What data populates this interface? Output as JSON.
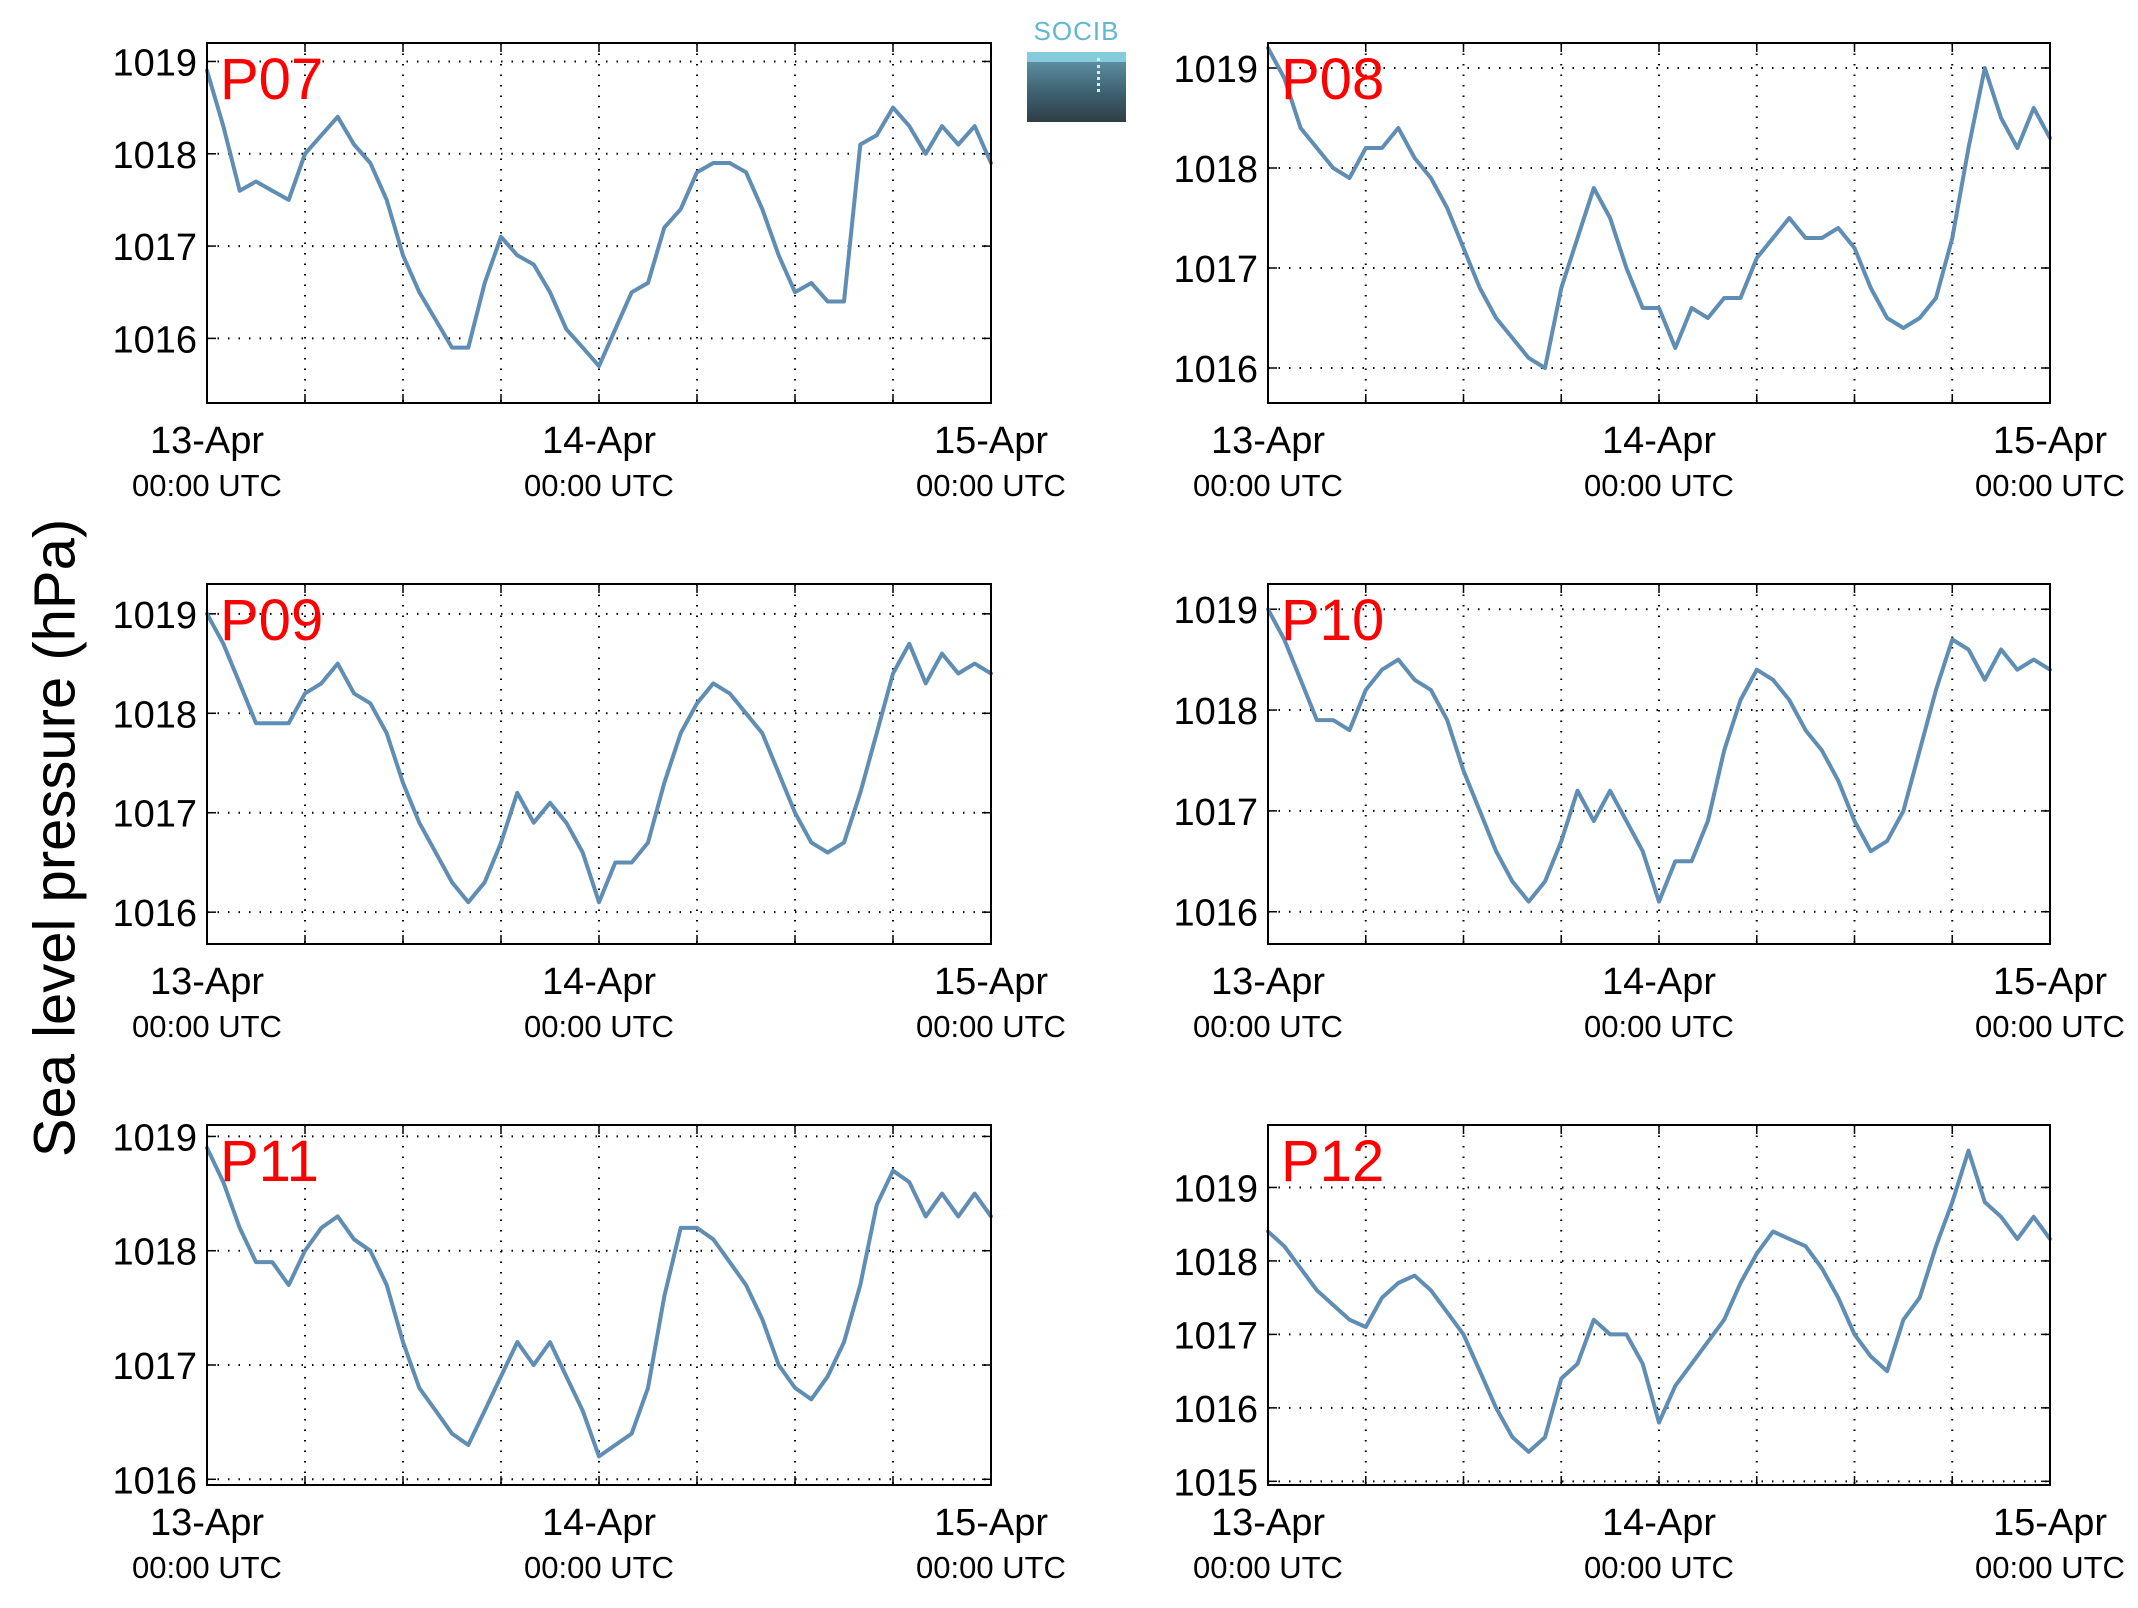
{
  "colors": {
    "line": "#5f8db3",
    "station_label": "#ff0000",
    "axis": "#000000",
    "grid": "#000000"
  },
  "figure": {
    "ylabel": "Sea level pressure (hPa)",
    "logo_text": "SOCIB",
    "time_axis": {
      "ticks": [
        {
          "hour": 0,
          "date": "13-Apr",
          "time": "00:00 UTC"
        },
        {
          "hour": 24,
          "date": "14-Apr",
          "time": "00:00 UTC"
        },
        {
          "hour": 48,
          "date": "15-Apr",
          "time": "00:00 UTC"
        }
      ]
    }
  },
  "chart_data": [
    {
      "type": "line",
      "name": "P07",
      "xunits": "hours since 13-Apr 00:00 UTC",
      "xlim": [
        0,
        48
      ],
      "ylim": [
        1015.3,
        1019.2
      ],
      "yticks": [
        1016,
        1017,
        1018,
        1019
      ],
      "grid": true,
      "x": [
        0,
        1,
        2,
        3,
        4,
        5,
        6,
        7,
        8,
        9,
        10,
        11,
        12,
        13,
        14,
        15,
        16,
        17,
        18,
        19,
        20,
        21,
        22,
        23,
        24,
        25,
        26,
        27,
        28,
        29,
        30,
        31,
        32,
        33,
        34,
        35,
        36,
        37,
        38,
        39,
        40,
        41,
        42,
        43,
        44,
        45,
        46,
        47,
        48
      ],
      "values": [
        1018.9,
        1018.3,
        1017.6,
        1017.7,
        1017.6,
        1017.5,
        1018.0,
        1018.2,
        1018.4,
        1018.1,
        1017.9,
        1017.5,
        1016.9,
        1016.5,
        1016.2,
        1015.9,
        1015.9,
        1016.6,
        1017.1,
        1016.9,
        1016.8,
        1016.5,
        1016.1,
        1015.9,
        1015.7,
        1016.1,
        1016.5,
        1016.6,
        1017.2,
        1017.4,
        1017.8,
        1017.9,
        1017.9,
        1017.8,
        1017.4,
        1016.9,
        1016.5,
        1016.6,
        1016.4,
        1016.4,
        1018.1,
        1018.2,
        1018.5,
        1018.3,
        1018.0,
        1018.3,
        1018.1,
        1018.3,
        1017.9
      ]
    },
    {
      "type": "line",
      "name": "P08",
      "xunits": "hours since 13-Apr 00:00 UTC",
      "xlim": [
        0,
        48
      ],
      "ylim": [
        1015.65,
        1019.25
      ],
      "yticks": [
        1016,
        1017,
        1018,
        1019
      ],
      "grid": true,
      "x": [
        0,
        1,
        2,
        3,
        4,
        5,
        6,
        7,
        8,
        9,
        10,
        11,
        12,
        13,
        14,
        15,
        16,
        17,
        18,
        19,
        20,
        21,
        22,
        23,
        24,
        25,
        26,
        27,
        28,
        29,
        30,
        31,
        32,
        33,
        34,
        35,
        36,
        37,
        38,
        39,
        40,
        41,
        42,
        43,
        44,
        45,
        46,
        47,
        48
      ],
      "values": [
        1019.2,
        1018.9,
        1018.4,
        1018.2,
        1018.0,
        1017.9,
        1018.2,
        1018.2,
        1018.4,
        1018.1,
        1017.9,
        1017.6,
        1017.2,
        1016.8,
        1016.5,
        1016.3,
        1016.1,
        1016.0,
        1016.8,
        1017.3,
        1017.8,
        1017.5,
        1017.0,
        1016.6,
        1016.6,
        1016.2,
        1016.6,
        1016.5,
        1016.7,
        1016.7,
        1017.1,
        1017.3,
        1017.5,
        1017.3,
        1017.3,
        1017.4,
        1017.2,
        1016.8,
        1016.5,
        1016.4,
        1016.5,
        1016.7,
        1017.3,
        1018.2,
        1019.0,
        1018.5,
        1018.2,
        1018.6,
        1018.3
      ]
    },
    {
      "type": "line",
      "name": "P09",
      "xunits": "hours since 13-Apr 00:00 UTC",
      "xlim": [
        0,
        48
      ],
      "ylim": [
        1015.68,
        1019.3
      ],
      "yticks": [
        1016,
        1017,
        1018,
        1019
      ],
      "grid": true,
      "x": [
        0,
        1,
        2,
        3,
        4,
        5,
        6,
        7,
        8,
        9,
        10,
        11,
        12,
        13,
        14,
        15,
        16,
        17,
        18,
        19,
        20,
        21,
        22,
        23,
        24,
        25,
        26,
        27,
        28,
        29,
        30,
        31,
        32,
        33,
        34,
        35,
        36,
        37,
        38,
        39,
        40,
        41,
        42,
        43,
        44,
        45,
        46,
        47,
        48
      ],
      "values": [
        1019.0,
        1018.7,
        1018.3,
        1017.9,
        1017.9,
        1017.9,
        1018.2,
        1018.3,
        1018.5,
        1018.2,
        1018.1,
        1017.8,
        1017.3,
        1016.9,
        1016.6,
        1016.3,
        1016.1,
        1016.3,
        1016.7,
        1017.2,
        1016.9,
        1017.1,
        1016.9,
        1016.6,
        1016.1,
        1016.5,
        1016.5,
        1016.7,
        1017.3,
        1017.8,
        1018.1,
        1018.3,
        1018.2,
        1018.0,
        1017.8,
        1017.4,
        1017.0,
        1016.7,
        1016.6,
        1016.7,
        1017.2,
        1017.8,
        1018.4,
        1018.7,
        1018.3,
        1018.6,
        1018.4,
        1018.5,
        1018.4
      ]
    },
    {
      "type": "line",
      "name": "P10",
      "xunits": "hours since 13-Apr 00:00 UTC",
      "xlim": [
        0,
        48
      ],
      "ylim": [
        1015.68,
        1019.25
      ],
      "yticks": [
        1016,
        1017,
        1018,
        1019
      ],
      "grid": true,
      "x": [
        0,
        1,
        2,
        3,
        4,
        5,
        6,
        7,
        8,
        9,
        10,
        11,
        12,
        13,
        14,
        15,
        16,
        17,
        18,
        19,
        20,
        21,
        22,
        23,
        24,
        25,
        26,
        27,
        28,
        29,
        30,
        31,
        32,
        33,
        34,
        35,
        36,
        37,
        38,
        39,
        40,
        41,
        42,
        43,
        44,
        45,
        46,
        47,
        48
      ],
      "values": [
        1019.0,
        1018.7,
        1018.3,
        1017.9,
        1017.9,
        1017.8,
        1018.2,
        1018.4,
        1018.5,
        1018.3,
        1018.2,
        1017.9,
        1017.4,
        1017.0,
        1016.6,
        1016.3,
        1016.1,
        1016.3,
        1016.7,
        1017.2,
        1016.9,
        1017.2,
        1016.9,
        1016.6,
        1016.1,
        1016.5,
        1016.5,
        1016.9,
        1017.6,
        1018.1,
        1018.4,
        1018.3,
        1018.1,
        1017.8,
        1017.6,
        1017.3,
        1016.9,
        1016.6,
        1016.7,
        1017.0,
        1017.6,
        1018.2,
        1018.7,
        1018.6,
        1018.3,
        1018.6,
        1018.4,
        1018.5,
        1018.4
      ]
    },
    {
      "type": "line",
      "name": "P11",
      "xunits": "hours since 13-Apr 00:00 UTC",
      "xlim": [
        0,
        48
      ],
      "ylim": [
        1015.95,
        1019.1
      ],
      "yticks": [
        1016,
        1017,
        1018,
        1019
      ],
      "grid": true,
      "x": [
        0,
        1,
        2,
        3,
        4,
        5,
        6,
        7,
        8,
        9,
        10,
        11,
        12,
        13,
        14,
        15,
        16,
        17,
        18,
        19,
        20,
        21,
        22,
        23,
        24,
        25,
        26,
        27,
        28,
        29,
        30,
        31,
        32,
        33,
        34,
        35,
        36,
        37,
        38,
        39,
        40,
        41,
        42,
        43,
        44,
        45,
        46,
        47,
        48
      ],
      "values": [
        1018.9,
        1018.6,
        1018.2,
        1017.9,
        1017.9,
        1017.7,
        1018.0,
        1018.2,
        1018.3,
        1018.1,
        1018.0,
        1017.7,
        1017.2,
        1016.8,
        1016.6,
        1016.4,
        1016.3,
        1016.6,
        1016.9,
        1017.2,
        1017.0,
        1017.2,
        1016.9,
        1016.6,
        1016.2,
        1016.3,
        1016.4,
        1016.8,
        1017.6,
        1018.2,
        1018.2,
        1018.1,
        1017.9,
        1017.7,
        1017.4,
        1017.0,
        1016.8,
        1016.7,
        1016.9,
        1017.2,
        1017.7,
        1018.4,
        1018.7,
        1018.6,
        1018.3,
        1018.5,
        1018.3,
        1018.5,
        1018.3
      ]
    },
    {
      "type": "line",
      "name": "P12",
      "xunits": "hours since 13-Apr 00:00 UTC",
      "xlim": [
        0,
        48
      ],
      "ylim": [
        1014.95,
        1019.85
      ],
      "yticks": [
        1015,
        1016,
        1017,
        1018,
        1019
      ],
      "grid": true,
      "x": [
        0,
        1,
        2,
        3,
        4,
        5,
        6,
        7,
        8,
        9,
        10,
        11,
        12,
        13,
        14,
        15,
        16,
        17,
        18,
        19,
        20,
        21,
        22,
        23,
        24,
        25,
        26,
        27,
        28,
        29,
        30,
        31,
        32,
        33,
        34,
        35,
        36,
        37,
        38,
        39,
        40,
        41,
        42,
        43,
        44,
        45,
        46,
        47,
        48
      ],
      "values": [
        1018.4,
        1018.2,
        1017.9,
        1017.6,
        1017.4,
        1017.2,
        1017.1,
        1017.5,
        1017.7,
        1017.8,
        1017.6,
        1017.3,
        1017.0,
        1016.5,
        1016.0,
        1015.6,
        1015.4,
        1015.6,
        1016.4,
        1016.6,
        1017.2,
        1017.0,
        1017.0,
        1016.6,
        1015.8,
        1016.3,
        1016.6,
        1016.9,
        1017.2,
        1017.7,
        1018.1,
        1018.4,
        1018.3,
        1018.2,
        1017.9,
        1017.5,
        1017.0,
        1016.7,
        1016.5,
        1017.2,
        1017.5,
        1018.2,
        1018.8,
        1019.5,
        1018.8,
        1018.6,
        1018.3,
        1018.6,
        1018.3
      ]
    }
  ]
}
